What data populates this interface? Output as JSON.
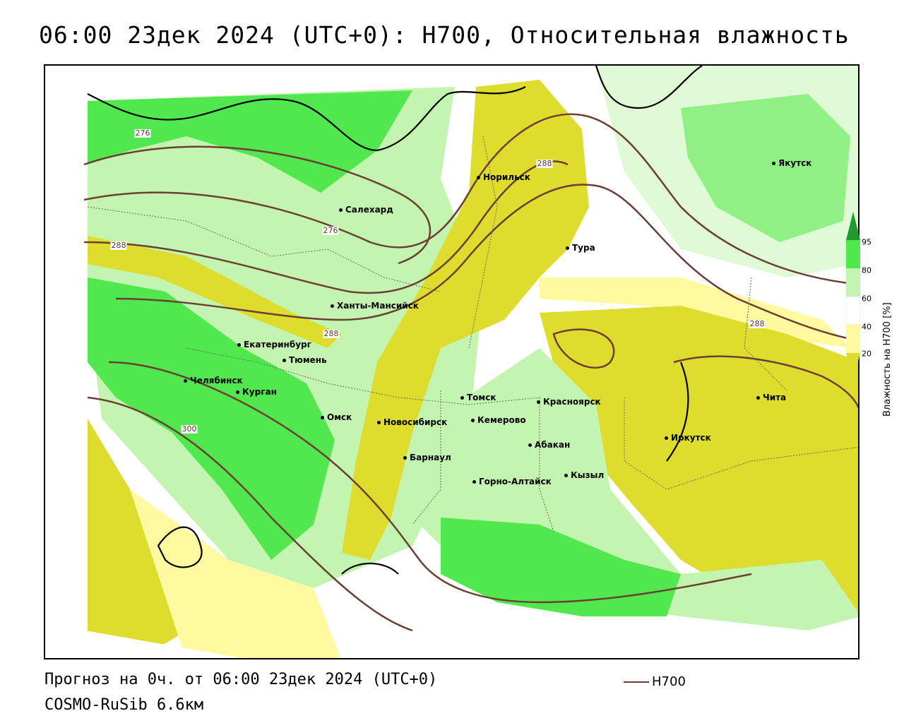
{
  "title": "06:00 23дек 2024 (UTC+0): H700, Относительная влажность",
  "footer": {
    "forecast": "Прогноз на 0ч. от 06:00 23дек 2024 (UTC+0)",
    "model": "COSMO-RuSib 6.6км",
    "isoline_key": "H700"
  },
  "legend": {
    "axis_label": "Влажность на H700 [%]",
    "ticks": [
      "95",
      "80",
      "60",
      "40",
      "20"
    ],
    "colors": {
      "very_dry": "#dedc2c",
      "dry": "#fffaa0",
      "neutral": "#ffffff",
      "moist": "#c4f5b0",
      "wet": "#50e84e",
      "saturated": "#1e9a2e"
    }
  },
  "isoline_color": "#6b3f33",
  "isolines": [
    "276",
    "276",
    "288",
    "288",
    "288",
    "288",
    "300"
  ],
  "cities": [
    "Якутск",
    "Норильск",
    "Салехард",
    "Тура",
    "Ханты-Мансийск",
    "Екатеринбург",
    "Тюмень",
    "Челябинск",
    "Курган",
    "Омск",
    "Новосибирск",
    "Томск",
    "Кемерово",
    "Красноярск",
    "Абакан",
    "Барнаул",
    "Горно-Алтайск",
    "Кызыл",
    "Иркутск",
    "Чита"
  ]
}
